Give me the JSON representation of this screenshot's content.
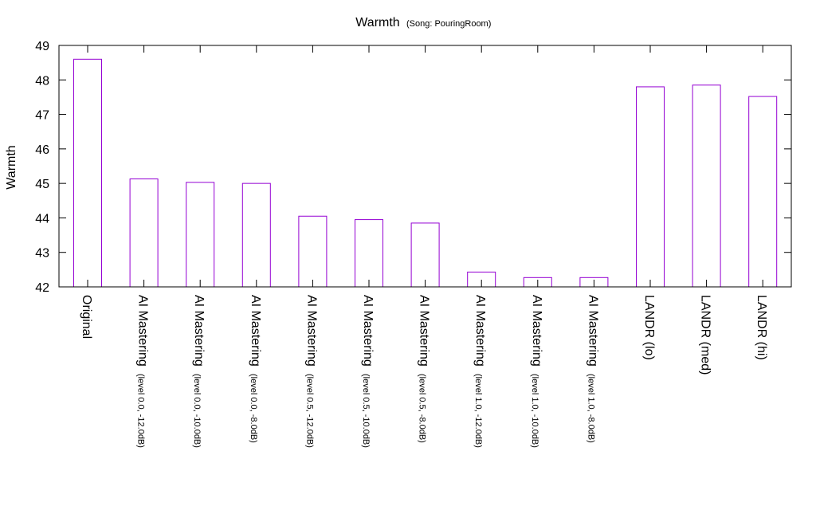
{
  "chart_data": {
    "type": "bar",
    "title": "Warmth",
    "subtitle": "(Song: PouringRoom)",
    "xlabel": "",
    "ylabel": "Warmth",
    "ylim": [
      42,
      49
    ],
    "yticks": [
      42,
      43,
      44,
      45,
      46,
      47,
      48,
      49
    ],
    "grid": false,
    "bar_color": "#9400d3",
    "categories": [
      {
        "label": "Original",
        "sub": ""
      },
      {
        "label": "AI Mastering",
        "sub": "(level 0.0, -12.0dB)"
      },
      {
        "label": "AI Mastering",
        "sub": "(level 0.0, -10.0dB)"
      },
      {
        "label": "AI Mastering",
        "sub": "(level 0.0, -8.0dB)"
      },
      {
        "label": "AI Mastering",
        "sub": "(level 0.5, -12.0dB)"
      },
      {
        "label": "AI Mastering",
        "sub": "(level 0.5, -10.0dB)"
      },
      {
        "label": "AI Mastering",
        "sub": "(level 0.5, -8.0dB)"
      },
      {
        "label": "AI Mastering",
        "sub": "(level 1.0, -12.0dB)"
      },
      {
        "label": "AI Mastering",
        "sub": "(level 1.0, -10.0dB)"
      },
      {
        "label": "AI Mastering",
        "sub": "(level 1.0, -8.0dB)"
      },
      {
        "label": "LANDR (lo)",
        "sub": ""
      },
      {
        "label": "LANDR (med)",
        "sub": ""
      },
      {
        "label": "LANDR (hi)",
        "sub": ""
      }
    ],
    "values": [
      48.6,
      45.13,
      45.03,
      45.0,
      44.05,
      43.95,
      43.85,
      42.43,
      42.27,
      42.27,
      47.8,
      47.85,
      47.52
    ]
  }
}
